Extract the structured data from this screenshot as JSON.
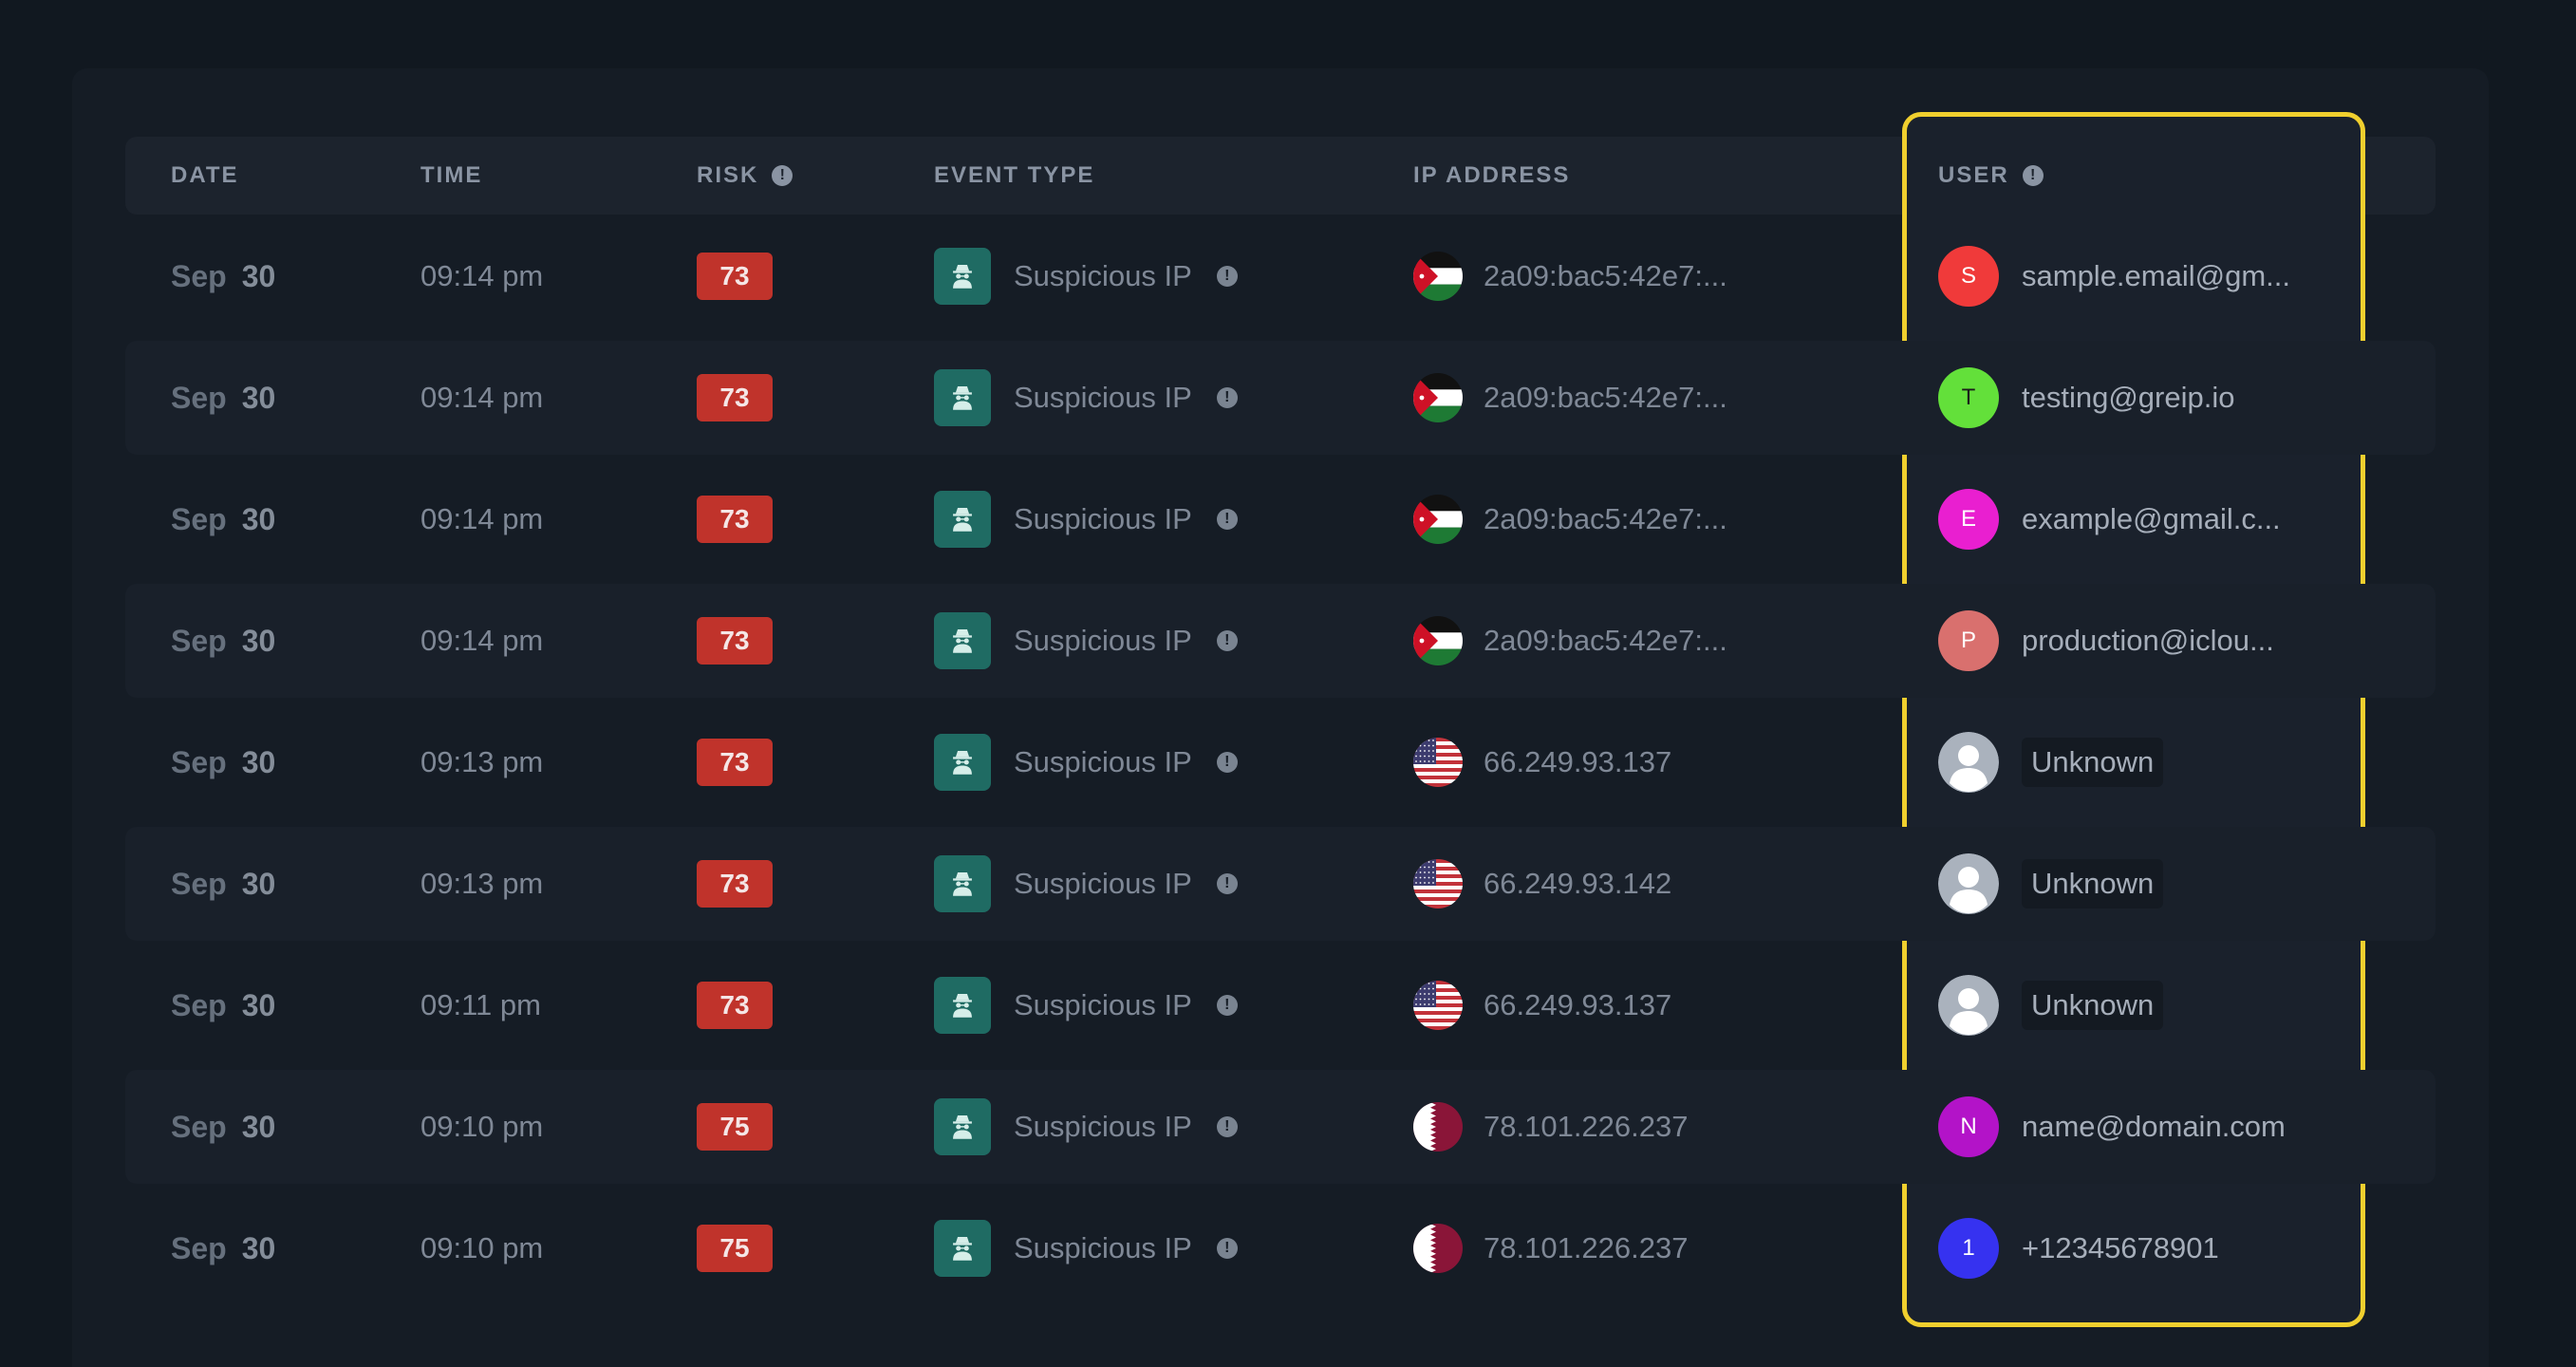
{
  "columns": {
    "date": "DATE",
    "time": "TIME",
    "risk": "RISK",
    "event_type": "EVENT TYPE",
    "ip_address": "IP ADDRESS",
    "user": "USER"
  },
  "header_info_glyph": "!",
  "colors": {
    "risk_badge": "#c0332b",
    "event_icon_bg": "#1f6b63",
    "highlight_border": "#f0cf2e"
  },
  "rows": [
    {
      "month": "Sep",
      "day": "30",
      "time": "09:14 pm",
      "risk": "73",
      "event": "Suspicious IP",
      "event_icon": "spy-icon",
      "flag": "jordan",
      "ip": "2a09:bac5:42e7:...",
      "user": {
        "initial": "S",
        "color": "#f03a3a",
        "text": "sample.email@gm...",
        "unknown": false
      }
    },
    {
      "month": "Sep",
      "day": "30",
      "time": "09:14 pm",
      "risk": "73",
      "event": "Suspicious IP",
      "event_icon": "spy-icon",
      "flag": "jordan",
      "ip": "2a09:bac5:42e7:...",
      "user": {
        "initial": "T",
        "color": "#63e03a",
        "text": "testing@greip.io",
        "unknown": false
      }
    },
    {
      "month": "Sep",
      "day": "30",
      "time": "09:14 pm",
      "risk": "73",
      "event": "Suspicious IP",
      "event_icon": "spy-icon",
      "flag": "jordan",
      "ip": "2a09:bac5:42e7:...",
      "user": {
        "initial": "E",
        "color": "#e91fd0",
        "text": "example@gmail.c...",
        "unknown": false
      }
    },
    {
      "month": "Sep",
      "day": "30",
      "time": "09:14 pm",
      "risk": "73",
      "event": "Suspicious IP",
      "event_icon": "spy-icon",
      "flag": "jordan",
      "ip": "2a09:bac5:42e7:...",
      "user": {
        "initial": "P",
        "color": "#d9706e",
        "text": "production@iclou...",
        "unknown": false
      }
    },
    {
      "month": "Sep",
      "day": "30",
      "time": "09:13 pm",
      "risk": "73",
      "event": "Suspicious IP",
      "event_icon": "spy-icon",
      "flag": "usa",
      "ip": "66.249.93.137",
      "user": {
        "initial": "",
        "color": "#aab2bd",
        "text": "Unknown",
        "unknown": true
      }
    },
    {
      "month": "Sep",
      "day": "30",
      "time": "09:13 pm",
      "risk": "73",
      "event": "Suspicious IP",
      "event_icon": "spy-icon",
      "flag": "usa",
      "ip": "66.249.93.142",
      "user": {
        "initial": "",
        "color": "#aab2bd",
        "text": "Unknown",
        "unknown": true
      }
    },
    {
      "month": "Sep",
      "day": "30",
      "time": "09:11 pm",
      "risk": "73",
      "event": "Suspicious IP",
      "event_icon": "spy-icon",
      "flag": "usa",
      "ip": "66.249.93.137",
      "user": {
        "initial": "",
        "color": "#aab2bd",
        "text": "Unknown",
        "unknown": true
      }
    },
    {
      "month": "Sep",
      "day": "30",
      "time": "09:10 pm",
      "risk": "75",
      "event": "Suspicious IP",
      "event_icon": "spy-icon",
      "flag": "qatar",
      "ip": "78.101.226.237",
      "user": {
        "initial": "N",
        "color": "#b313c8",
        "text": "name@domain.com",
        "unknown": false
      }
    },
    {
      "month": "Sep",
      "day": "30",
      "time": "09:10 pm",
      "risk": "75",
      "event": "Suspicious IP",
      "event_icon": "spy-icon",
      "flag": "qatar",
      "ip": "78.101.226.237",
      "user": {
        "initial": "1",
        "color": "#3632f0",
        "text": "+12345678901",
        "unknown": false
      }
    }
  ]
}
